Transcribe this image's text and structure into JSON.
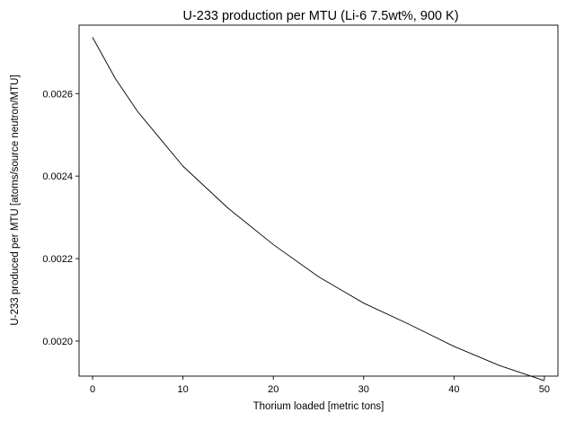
{
  "chart_data": {
    "type": "line",
    "title": "U-233 production per MTU (Li-6 7.5wt%, 900 K)",
    "xlabel": "Thorium loaded [metric tons]",
    "ylabel": "U-233 produced per MTU [atoms/source neutron/MTU]",
    "xlim": [
      -1.5,
      51.5
    ],
    "ylim": [
      0.001915,
      0.002766
    ],
    "xticks": [
      0,
      10,
      20,
      30,
      40,
      50
    ],
    "xtick_labels": [
      "0",
      "10",
      "20",
      "30",
      "40",
      "50"
    ],
    "yticks": [
      0.002,
      0.0022,
      0.0024,
      0.0026
    ],
    "ytick_labels": [
      "0.0020",
      "0.0022",
      "0.0024",
      "0.0026"
    ],
    "grid": false,
    "line_color": "#000000",
    "series": [
      {
        "x": [
          0,
          2.5,
          5,
          7.5,
          10,
          15,
          20,
          25,
          30,
          35,
          40,
          45,
          50
        ],
        "y": [
          0.002736,
          0.002637,
          0.002556,
          0.00249,
          0.002424,
          0.002322,
          0.002234,
          0.002156,
          0.002092,
          0.002041,
          0.001987,
          0.001941,
          0.001904
        ]
      }
    ]
  }
}
